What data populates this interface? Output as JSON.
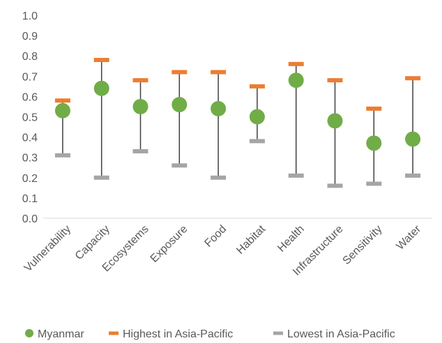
{
  "chart_data": {
    "type": "scatter",
    "title": "",
    "xlabel": "",
    "ylabel": "",
    "ylim": [
      0,
      1.0
    ],
    "y_ticks": [
      "0.0",
      "0.1",
      "0.2",
      "0.3",
      "0.4",
      "0.5",
      "0.6",
      "0.7",
      "0.8",
      "0.9",
      "1.0"
    ],
    "grid": false,
    "legend_position": "bottom",
    "categories": [
      "Vulnerability",
      "Capacity",
      "Ecosystems",
      "Exposure",
      "Food",
      "Habitat",
      "Health",
      "Infrastructure",
      "Sensitivity",
      "Water"
    ],
    "series": [
      {
        "name": "Myanmar",
        "marker": "circle",
        "color": "#70ad47",
        "values": [
          0.53,
          0.64,
          0.55,
          0.56,
          0.54,
          0.5,
          0.68,
          0.48,
          0.37,
          0.39
        ]
      },
      {
        "name": "Highest in Asia-Pacific",
        "marker": "dash",
        "color": "#ed7d31",
        "values": [
          0.58,
          0.78,
          0.68,
          0.72,
          0.72,
          0.65,
          0.76,
          0.68,
          0.54,
          0.69
        ]
      },
      {
        "name": "Lowest in Asia-Pacific",
        "marker": "dash",
        "color": "#a5a5a5",
        "values": [
          0.31,
          0.2,
          0.33,
          0.26,
          0.2,
          0.38,
          0.21,
          0.16,
          0.17,
          0.21
        ]
      }
    ],
    "range_line_color": "#404040"
  }
}
